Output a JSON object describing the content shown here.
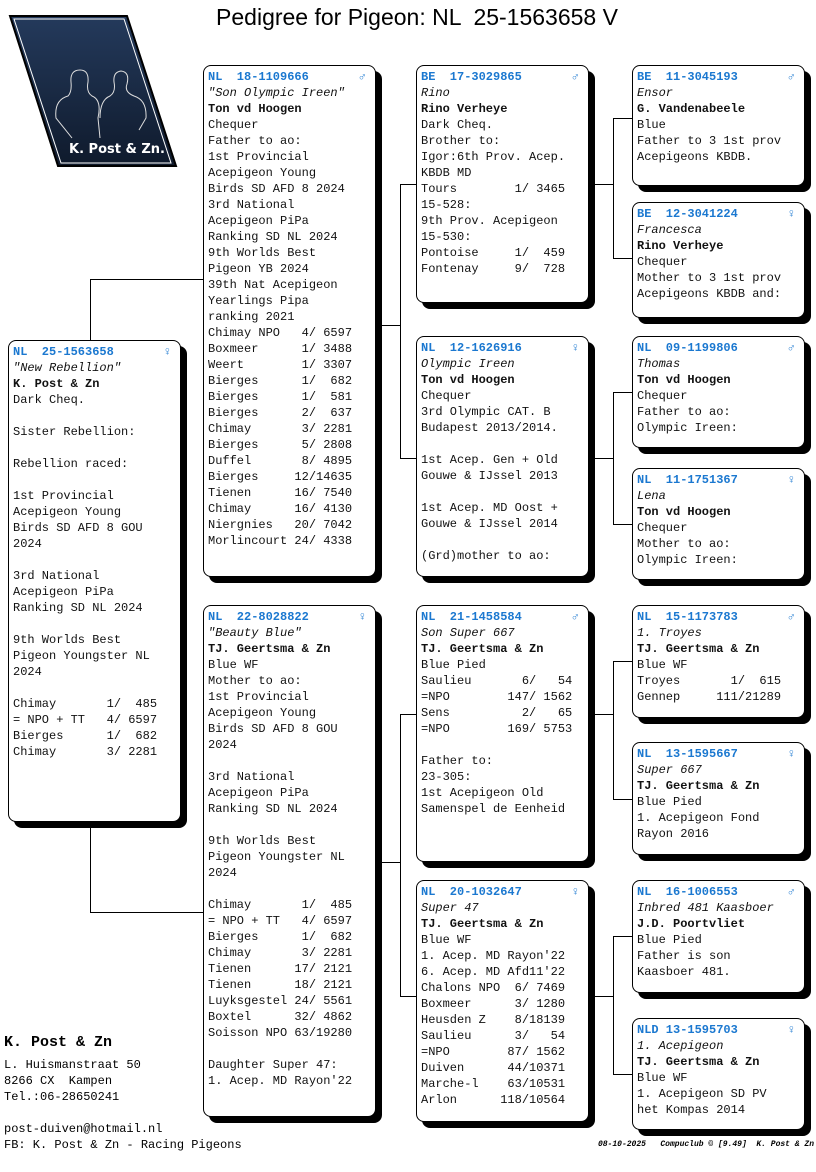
{
  "title": "Pedigree for Pigeon: NL  25-1563658 V",
  "logo": {
    "text": "K. Post & Zn.",
    "color": "#14233d"
  },
  "colors": {
    "ring": "#1b78d0"
  },
  "pigeons": {
    "subject": {
      "ring": "NL  25-1563658",
      "sex": "♀",
      "name": "\"New Rebellion\"",
      "owner": "K. Post & Zn",
      "lines": [
        "Dark Cheq.",
        "",
        "Sister Rebellion:",
        "",
        "Rebellion raced:",
        "",
        "1st Provincial",
        "Acepigeon Young",
        "Birds SD AFD 8 GOU",
        "2024",
        "",
        "3rd National",
        "Acepigeon PiPa",
        "Ranking SD NL 2024",
        "",
        "9th Worlds Best",
        "Pigeon Youngster NL",
        "2024",
        "",
        "Chimay       1/  485",
        "= NPO + TT   4/ 6597",
        "Bierges      1/  682",
        "Chimay       3/ 2281"
      ]
    },
    "sire": {
      "ring": "NL  18-1109666",
      "sex": "♂",
      "name": "\"Son Olympic Ireen\"",
      "owner": "Ton vd Hoogen",
      "lines": [
        "Chequer",
        "Father to ao:",
        "1st Provincial",
        "Acepigeon Young",
        "Birds SD AFD 8 2024",
        "3rd National",
        "Acepigeon PiPa",
        "Ranking SD NL 2024",
        "9th Worlds Best",
        "Pigeon YB 2024",
        "39th Nat Acepigeon",
        "Yearlings Pipa",
        "ranking 2021",
        "Chimay NPO   4/ 6597",
        "Boxmeer      1/ 3488",
        "Weert        1/ 3307",
        "Bierges      1/  682",
        "Bierges      1/  581",
        "Bierges      2/  637",
        "Chimay       3/ 2281",
        "Bierges      5/ 2808",
        "Duffel       8/ 4895",
        "Bierges     12/14635",
        "Tienen      16/ 7540",
        "Chimay      16/ 4130",
        "Niergnies   20/ 7042",
        "Morlincourt 24/ 4338"
      ]
    },
    "dam": {
      "ring": "NL  22-8028822",
      "sex": "♀",
      "name": "\"Beauty Blue\"",
      "owner": "TJ. Geertsma & Zn",
      "lines": [
        "Blue WF",
        "Mother to ao:",
        "1st Provincial",
        "Acepigeon Young",
        "Birds SD AFD 8 GOU",
        "2024",
        "",
        "3rd National",
        "Acepigeon PiPa",
        "Ranking SD NL 2024",
        "",
        "9th Worlds Best",
        "Pigeon Youngster NL",
        "2024",
        "",
        "Chimay       1/  485",
        "= NPO + TT   4/ 6597",
        "Bierges      1/  682",
        "Chimay       3/ 2281",
        "Tienen      17/ 2121",
        "Tienen      18/ 2121",
        "Luyksgestel 24/ 5561",
        "Boxtel      32/ 4862",
        "Soisson NPO 63/19280",
        "",
        "Daughter Super 47:",
        "1. Acep. MD Rayon'22"
      ]
    },
    "ss": {
      "ring": "BE  17-3029865",
      "sex": "♂",
      "name": "Rino",
      "owner": "Rino Verheye",
      "lines": [
        "Dark Cheq.",
        "Brother to:",
        "Igor:6th Prov. Acep.",
        "KBDB MD",
        "Tours        1/ 3465",
        "15-528:",
        "9th Prov. Acepigeon",
        "15-530:",
        "Pontoise     1/  459",
        "Fontenay     9/  728"
      ]
    },
    "sd": {
      "ring": "NL  12-1626916",
      "sex": "♀",
      "name": "Olympic Ireen",
      "owner": "Ton vd Hoogen",
      "lines": [
        "Chequer",
        "3rd Olympic CAT. B",
        "Budapest 2013/2014.",
        "",
        "1st Acep. Gen + Old",
        "Gouwe & IJssel 2013",
        "",
        "1st Acep. MD Oost +",
        "Gouwe & IJssel 2014",
        "",
        "(Grd)mother to ao:"
      ]
    },
    "ds": {
      "ring": "NL  21-1458584",
      "sex": "♂",
      "name": "Son Super 667",
      "owner": "TJ. Geertsma & Zn",
      "lines": [
        "Blue Pied",
        "Saulieu       6/   54",
        "=NPO        147/ 1562",
        "Sens          2/   65",
        "=NPO        169/ 5753",
        "",
        "Father to:",
        "23-305:",
        "1st Acepigeon Old",
        "Samenspel de Eenheid"
      ]
    },
    "dd": {
      "ring": "NL  20-1032647",
      "sex": "♀",
      "name": "Super 47",
      "owner": "TJ. Geertsma & Zn",
      "lines": [
        "Blue WF",
        "1. Acep. MD Rayon'22",
        "6. Acep. MD Afd11'22",
        "Chalons NPO  6/ 7469",
        "Boxmeer      3/ 1280",
        "Heusden Z    8/18139",
        "Saulieu      3/   54",
        "=NPO        87/ 1562",
        "Duiven      44/10371",
        "Marche-l    63/10531",
        "Arlon      118/10564"
      ]
    },
    "sss": {
      "ring": "BE  11-3045193",
      "sex": "♂",
      "name": "Ensor",
      "owner": "G. Vandenabeele",
      "lines": [
        "Blue",
        "Father to 3 1st prov",
        "Acepigeons KBDB."
      ]
    },
    "ssd": {
      "ring": "BE  12-3041224",
      "sex": "♀",
      "name": "Francesca",
      "owner": "Rino Verheye",
      "lines": [
        "Chequer",
        "Mother to 3 1st prov",
        "Acepigeons KBDB and:"
      ]
    },
    "sds": {
      "ring": "NL  09-1199806",
      "sex": "♂",
      "name": "Thomas",
      "owner": "Ton vd Hoogen",
      "lines": [
        "Chequer",
        "Father to ao:",
        "Olympic Ireen:"
      ]
    },
    "sdd": {
      "ring": "NL  11-1751367",
      "sex": "♀",
      "name": "Lena",
      "owner": "Ton vd Hoogen",
      "lines": [
        "Chequer",
        "Mother to ao:",
        "Olympic Ireen:"
      ]
    },
    "dss": {
      "ring": "NL  15-1173783",
      "sex": "♂",
      "name": "1. Troyes",
      "owner": "TJ. Geertsma & Zn",
      "lines": [
        "Blue WF",
        "Troyes       1/  615",
        "Gennep     111/21289"
      ]
    },
    "dsd": {
      "ring": "NL  13-1595667",
      "sex": "♀",
      "name": "Super 667",
      "owner": "TJ. Geertsma & Zn",
      "lines": [
        "Blue Pied",
        "1. Acepigeon Fond",
        "Rayon 2016"
      ]
    },
    "dds": {
      "ring": "NL  16-1006553",
      "sex": "♂",
      "name": "Inbred 481 Kaasboer",
      "owner": "J.D. Poortvliet",
      "lines": [
        "Blue Pied",
        "Father is son",
        "Kaasboer 481."
      ]
    },
    "ddd": {
      "ring": "NLD 13-1595703",
      "sex": "♀",
      "name": "1. Acepigeon",
      "owner": "TJ. Geertsma & Zn",
      "lines": [
        "Blue WF",
        "1. Acepigeon SD PV",
        "het Kompas 2014"
      ]
    }
  },
  "footer": {
    "name": "K. Post & Zn",
    "address": "L. Huismanstraat 50",
    "city": "8266 CX  Kampen",
    "phone": "Tel.:06-28650241",
    "email": "post-duiven@hotmail.nl",
    "facebook": "FB: K. Post & Zn - Racing Pigeons",
    "stamp": "08-10-2025   Compuclub © [9.49]  K. Post & Zn"
  }
}
